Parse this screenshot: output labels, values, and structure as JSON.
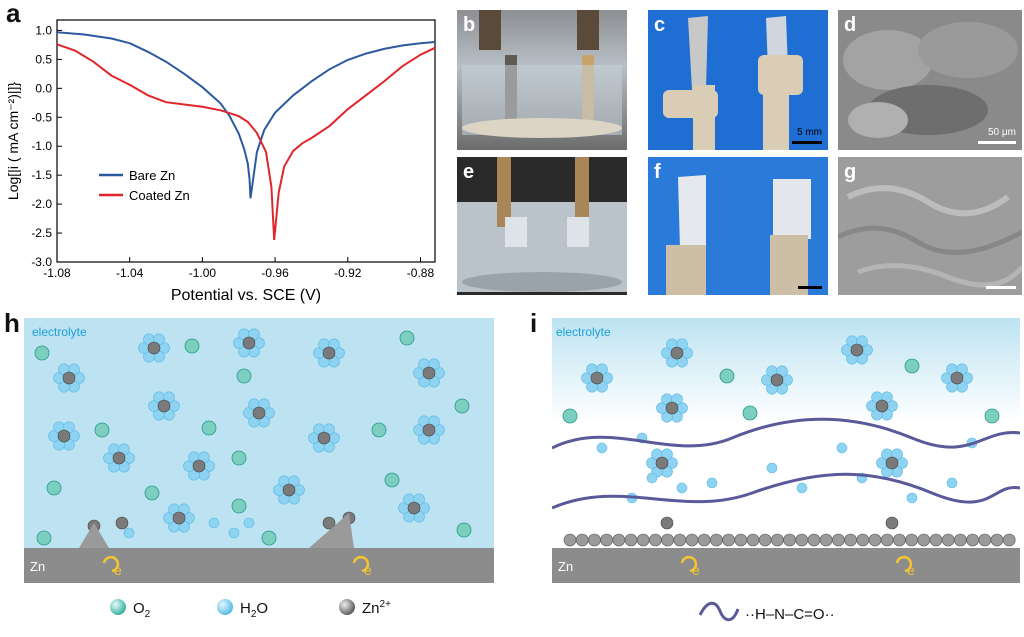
{
  "panel_a": {
    "letter": "a",
    "chart_data": {
      "type": "line",
      "xlabel": "Potential vs. SCE (V)",
      "ylabel": "Log[|i ( mA cm⁻²)|]}",
      "xlim": [
        -1.08,
        -0.872
      ],
      "ylim": [
        -3.0,
        1.18
      ],
      "xticks": [
        -1.08,
        -1.04,
        -1.0,
        -0.96,
        -0.92,
        -0.88
      ],
      "xtick_labels": [
        "-1.08",
        "-1.04",
        "-1.00",
        "-0.96",
        "-0.92",
        "-0.88"
      ],
      "yticks": [
        1.0,
        0.5,
        0.0,
        -0.5,
        -1.0,
        -1.5,
        -2.0,
        -2.5,
        -3.0
      ],
      "ytick_labels": [
        "1.0",
        "0.5",
        "0.0",
        "-0.5",
        "-1.0",
        "-1.5",
        "-2.0",
        "-2.5",
        "-3.0"
      ],
      "legend_position": "center-left",
      "series": [
        {
          "name": "Bare Zn",
          "color": "#2b5aa0",
          "points": [
            [
              -1.08,
              0.97
            ],
            [
              -1.065,
              0.93
            ],
            [
              -1.05,
              0.86
            ],
            [
              -1.04,
              0.78
            ],
            [
              -1.03,
              0.63
            ],
            [
              -1.02,
              0.46
            ],
            [
              -1.01,
              0.25
            ],
            [
              -1.0,
              0.02
            ],
            [
              -0.99,
              -0.26
            ],
            [
              -0.985,
              -0.48
            ],
            [
              -0.98,
              -0.78
            ],
            [
              -0.977,
              -1.05
            ],
            [
              -0.975,
              -1.3
            ],
            [
              -0.974,
              -1.58
            ],
            [
              -0.9735,
              -1.9
            ],
            [
              -0.972,
              -1.55
            ],
            [
              -0.97,
              -1.1
            ],
            [
              -0.966,
              -0.72
            ],
            [
              -0.96,
              -0.42
            ],
            [
              -0.95,
              -0.12
            ],
            [
              -0.94,
              0.12
            ],
            [
              -0.93,
              0.33
            ],
            [
              -0.92,
              0.49
            ],
            [
              -0.91,
              0.6
            ],
            [
              -0.9,
              0.68
            ],
            [
              -0.89,
              0.74
            ],
            [
              -0.88,
              0.78
            ],
            [
              -0.872,
              0.8
            ]
          ]
        },
        {
          "name": "Coated Zn",
          "color": "#e0262b",
          "points": [
            [
              -1.08,
              0.76
            ],
            [
              -1.07,
              0.65
            ],
            [
              -1.06,
              0.46
            ],
            [
              -1.05,
              0.22
            ],
            [
              -1.04,
              0.06
            ],
            [
              -1.03,
              -0.12
            ],
            [
              -1.02,
              -0.24
            ],
            [
              -1.01,
              -0.28
            ],
            [
              -1.0,
              -0.32
            ],
            [
              -0.99,
              -0.38
            ],
            [
              -0.98,
              -0.48
            ],
            [
              -0.975,
              -0.58
            ],
            [
              -0.97,
              -0.77
            ],
            [
              -0.965,
              -1.1
            ],
            [
              -0.962,
              -1.7
            ],
            [
              -0.9605,
              -2.62
            ],
            [
              -0.958,
              -1.8
            ],
            [
              -0.955,
              -1.35
            ],
            [
              -0.95,
              -1.08
            ],
            [
              -0.945,
              -0.95
            ],
            [
              -0.94,
              -0.86
            ],
            [
              -0.93,
              -0.65
            ],
            [
              -0.92,
              -0.36
            ],
            [
              -0.91,
              -0.12
            ],
            [
              -0.9,
              0.12
            ],
            [
              -0.89,
              0.38
            ],
            [
              -0.88,
              0.58
            ],
            [
              -0.872,
              0.7
            ]
          ]
        }
      ]
    }
  },
  "panel_b": {
    "letter": "b"
  },
  "panel_c": {
    "letter": "c",
    "scale": "5 mm"
  },
  "panel_d": {
    "letter": "d",
    "scale": "50 μm"
  },
  "panel_e": {
    "letter": "e"
  },
  "panel_f": {
    "letter": "f"
  },
  "panel_g": {
    "letter": "g"
  },
  "panel_h": {
    "letter": "h",
    "electrolyte": "electrolyte",
    "substrate": "Zn",
    "electron": "e"
  },
  "panel_i": {
    "letter": "i",
    "electrolyte": "electrolyte",
    "substrate": "Zn",
    "electron": "e"
  },
  "legend": {
    "o2": "O",
    "o2_sub": "2",
    "h2o": "H",
    "h2o_sub": "2",
    "h2o_tail": "O",
    "zn": "Zn",
    "zn_sup": "2+",
    "group_formula": "··H–N–C=O··"
  }
}
